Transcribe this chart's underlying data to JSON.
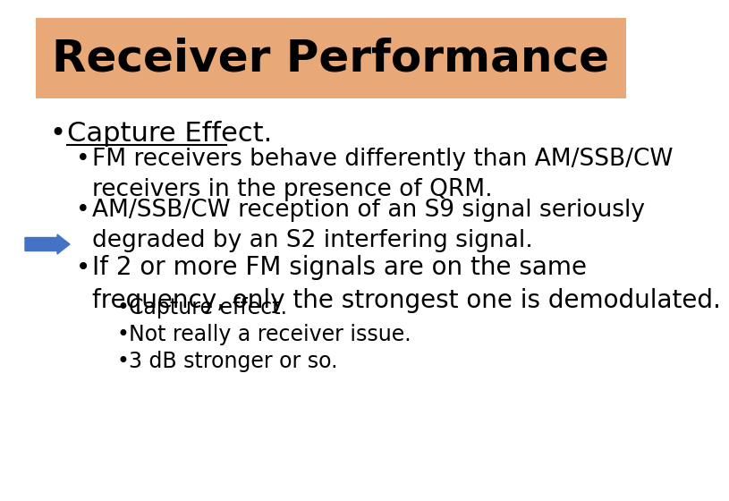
{
  "title": "Receiver Performance",
  "title_bg_color": "#E8A878",
  "slide_bg_color": "#FFFFFF",
  "title_font_size": 36,
  "title_font_weight": "bold",
  "bullet1": "Capture Effect.",
  "bullet1_font_size": 22,
  "sub_bullets": [
    "FM receivers behave differently than AM/SSB/CW\nreceivers in the presence of QRM.",
    "AM/SSB/CW reception of an S9 signal seriously\ndegraded by an S2 interfering signal.",
    "If 2 or more FM signals are on the same\nfrequency, only the strongest one is demodulated."
  ],
  "sub_bullet_font_sizes": [
    19,
    19,
    20
  ],
  "sub_sub_bullets": [
    "Capture effect.",
    "Not really a receiver issue.",
    "3 dB stronger or so."
  ],
  "sub_sub_font_size": 17,
  "arrow_color": "#4472C4",
  "text_color": "#000000"
}
